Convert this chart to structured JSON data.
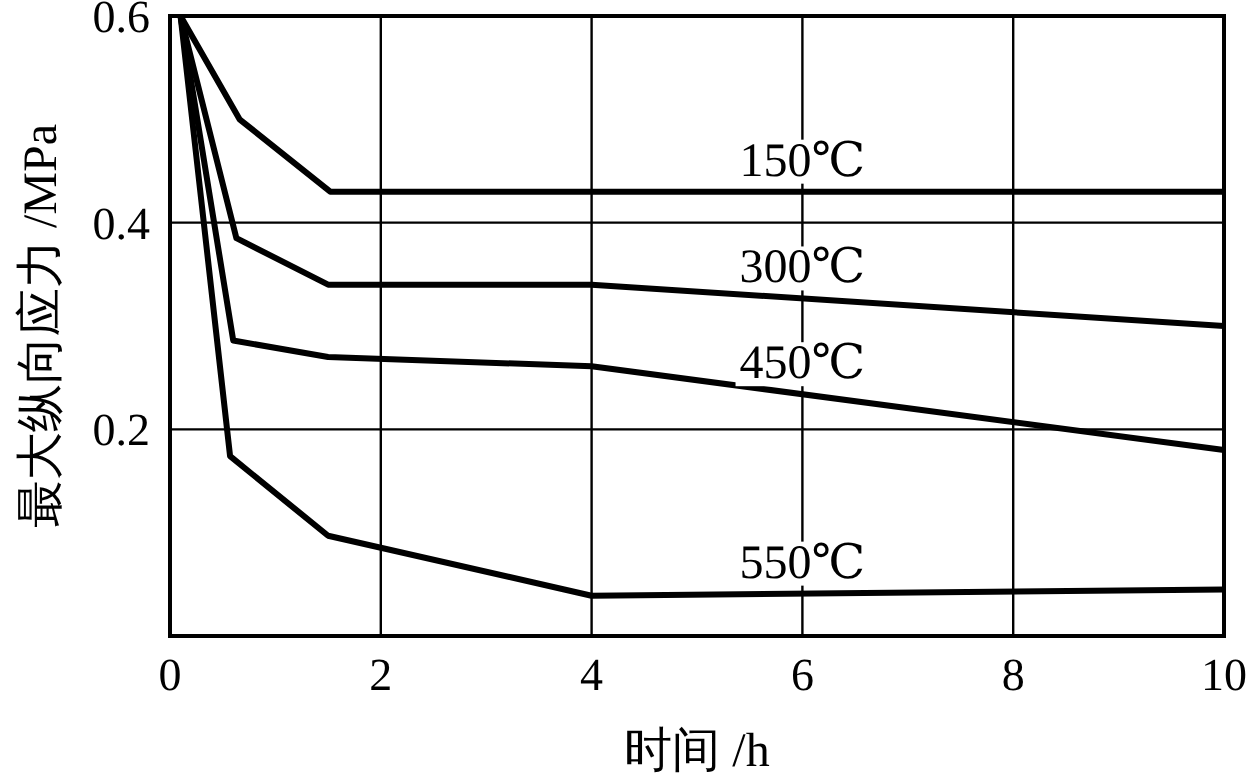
{
  "chart_data": {
    "type": "line",
    "xlabel": "时间 /h",
    "ylabel": "最大纵向应力 /MPa",
    "xlim": [
      0,
      10
    ],
    "ylim": [
      0,
      0.6
    ],
    "xticks": [
      0,
      2,
      4,
      6,
      8,
      10
    ],
    "yticks": [
      {
        "value": 0.2,
        "label": "0.2"
      },
      {
        "value": 0.4,
        "label": "0.4"
      },
      {
        "value": 0.6,
        "label": "0.6"
      }
    ],
    "grid": true,
    "marker": "none",
    "line_style": "solid",
    "series": [
      {
        "name": "150℃",
        "color": "#000000",
        "x": [
          0.1,
          0.66,
          1.52,
          10
        ],
        "values": [
          0.6,
          0.5,
          0.43,
          0.43
        ]
      },
      {
        "name": "300℃",
        "color": "#000000",
        "x": [
          0.1,
          0.63,
          1.5,
          4,
          10
        ],
        "values": [
          0.6,
          0.385,
          0.34,
          0.34,
          0.3
        ]
      },
      {
        "name": "450℃",
        "color": "#000000",
        "x": [
          0.1,
          0.6,
          1.5,
          4,
          10
        ],
        "values": [
          0.6,
          0.286,
          0.27,
          0.261,
          0.18
        ]
      },
      {
        "name": "550℃",
        "color": "#000000",
        "x": [
          0.1,
          0.57,
          1.5,
          4,
          10
        ],
        "values": [
          0.6,
          0.174,
          0.097,
          0.039,
          0.045
        ]
      }
    ]
  }
}
